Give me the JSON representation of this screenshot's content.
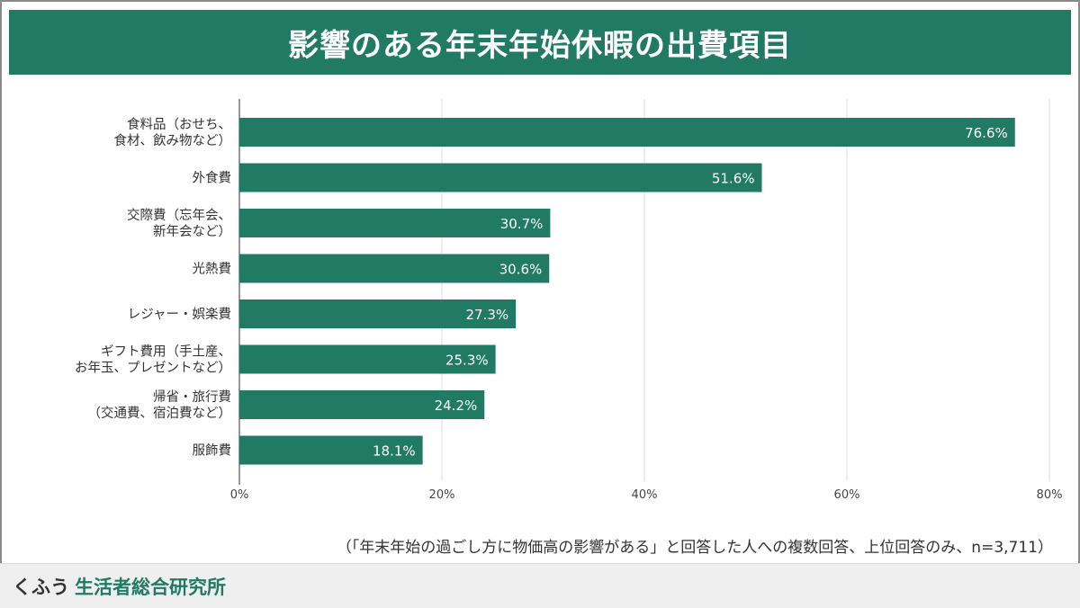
{
  "title": "影響のある年末年始休暇の出費項目",
  "chart_data": {
    "type": "bar",
    "orientation": "horizontal",
    "categories": [
      [
        "食料品（おせち、",
        "食材、飲み物など）"
      ],
      [
        "外食費"
      ],
      [
        "交際費（忘年会、",
        "新年会など）"
      ],
      [
        "光熱費"
      ],
      [
        "レジャー・娯楽費"
      ],
      [
        "ギフト費用（手土産、",
        "お年玉、プレゼントなど）"
      ],
      [
        "帰省・旅行費",
        "（交通費、宿泊費など）"
      ],
      [
        "服飾費"
      ]
    ],
    "values": [
      76.6,
      51.6,
      30.7,
      30.6,
      27.3,
      25.3,
      24.2,
      18.1
    ],
    "value_labels": [
      "76.6%",
      "51.6%",
      "30.7%",
      "30.6%",
      "27.3%",
      "25.3%",
      "24.2%",
      "18.1%"
    ],
    "xlim": [
      0,
      80
    ],
    "xticks": [
      0,
      20,
      40,
      60,
      80
    ],
    "xtick_labels": [
      "0%",
      "20%",
      "40%",
      "60%",
      "80%"
    ],
    "grid": true,
    "bar_color": "#217a63",
    "label_color": "#ffffff"
  },
  "footnote": "（「年末年始の過ごし方に物価高の影響がある」と回答した人への複数回答、上位回答のみ、n=3,711）",
  "footer": {
    "brand_kana": "くふう",
    "brand_name": "生活者総合研究所"
  },
  "colors": {
    "accent": "#217a63",
    "footer_bg": "#efefef"
  }
}
